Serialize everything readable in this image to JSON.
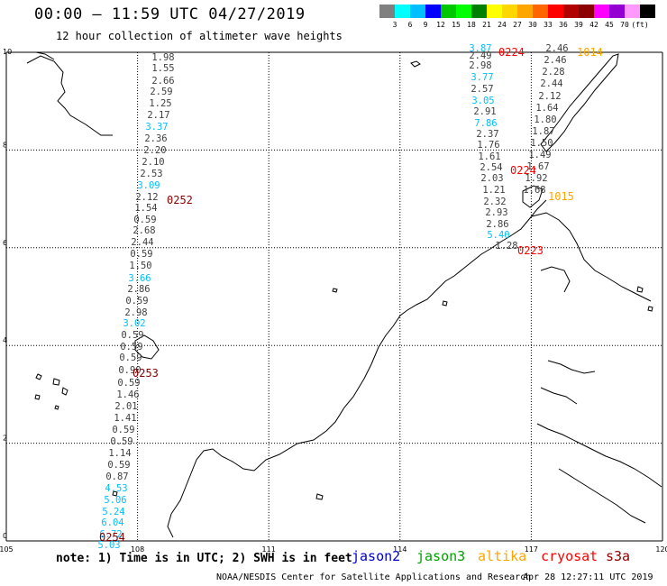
{
  "header": {
    "title": "00:00 – 11:59 UTC 04/27/2019",
    "subtitle": "12 hour collection of altimeter wave heights"
  },
  "color_scale": {
    "colors": [
      "#808080",
      "#00ffff",
      "#00bfff",
      "#0000ff",
      "#00c800",
      "#00ff00",
      "#008000",
      "#ffff00",
      "#ffd700",
      "#ffa500",
      "#ff6600",
      "#ff0000",
      "#b00000",
      "#8b0000",
      "#ff00ff",
      "#9400d3",
      "#ff99ff",
      "#000000"
    ],
    "labels": [
      "3",
      "6",
      "9",
      "12",
      "15",
      "18",
      "21",
      "24",
      "27",
      "30",
      "33",
      "36",
      "39",
      "42",
      "45",
      "70",
      "(ft)"
    ]
  },
  "map": {
    "x_ticks": [
      "105",
      "108",
      "111",
      "114",
      "117",
      "120"
    ],
    "y_ticks": [
      "0",
      "2",
      "4",
      "6",
      "8",
      "10"
    ],
    "lon_range": [
      105,
      120
    ],
    "lat_range": [
      0,
      10
    ]
  },
  "tracks": [
    {
      "name": "track-108",
      "x": [
        181,
        181,
        181,
        179,
        178,
        176,
        174,
        173,
        172,
        170,
        168,
        165,
        163,
        162,
        161,
        160,
        158,
        157,
        156,
        155,
        154,
        152,
        151,
        149,
        147,
        146,
        145,
        144,
        143,
        142,
        140,
        139,
        137,
        135,
        133,
        132,
        130,
        129,
        128,
        126,
        125,
        123,
        121,
        119
      ],
      "y": [
        67,
        79,
        93,
        105,
        118,
        131,
        144,
        157,
        170,
        183,
        196,
        209,
        222,
        234,
        247,
        259,
        272,
        285,
        298,
        312,
        324,
        337,
        350,
        362,
        375,
        388,
        400,
        414,
        428,
        441,
        454,
        467,
        480,
        493,
        506,
        519,
        532,
        545,
        558,
        571,
        583,
        596,
        608,
        620
      ],
      "values": [
        "1.98",
        "1.55",
        "2.66",
        "2.59",
        "1.25",
        "2.17",
        "3.37",
        "2.36",
        "2.20",
        "2.10",
        "2.53",
        "3.09",
        "2.12",
        "1.54",
        "0.59",
        "2.68",
        "2.44",
        "0.59",
        "1.50",
        "3.66",
        "2.86",
        "0.59",
        "2.98",
        "3.02",
        "0.59",
        "0.59",
        "0.59",
        "0.90",
        "0.59",
        "1.46",
        "2.01",
        "1.41",
        "0.59",
        "0.59",
        "1.14",
        "0.59",
        "0.87",
        "4.53",
        "5.06",
        "5.24",
        "6.04",
        "6.72",
        "5.03",
        ""
      ],
      "value_colors": [
        "#404040",
        "#404040",
        "#404040",
        "#404040",
        "#404040",
        "#404040",
        "#00bfff",
        "#404040",
        "#404040",
        "#404040",
        "#404040",
        "#00bfff",
        "#404040",
        "#404040",
        "#404040",
        "#404040",
        "#404040",
        "#404040",
        "#404040",
        "#00bfff",
        "#404040",
        "#404040",
        "#404040",
        "#00bfff",
        "#404040",
        "#404040",
        "#404040",
        "#404040",
        "#404040",
        "#404040",
        "#404040",
        "#404040",
        "#404040",
        "#404040",
        "#404040",
        "#404040",
        "#404040",
        "#00bfff",
        "#00bfff",
        "#00bfff",
        "#00bfff",
        "#00bfff",
        "#00bfff",
        ""
      ]
    },
    {
      "name": "track-116",
      "x": [
        533,
        533,
        533,
        535,
        535,
        536,
        538,
        539,
        541,
        542,
        543,
        545,
        546,
        548,
        549,
        551,
        552,
        553
      ],
      "y": [
        57,
        65,
        76,
        89,
        102,
        115,
        127,
        140,
        152,
        164,
        177,
        189,
        201,
        214,
        227,
        239,
        252,
        264
      ],
      "values": [
        "3.87",
        "2.49",
        "2.98",
        "3.77",
        "2.57",
        "3.05",
        "2.91",
        "7.86",
        "2.37",
        "1.76",
        "1.61",
        "2.54",
        "2.03",
        "1.21",
        "2.32",
        "2.93",
        "2.86",
        "5.40"
      ],
      "value_colors": [
        "#00bfff",
        "#404040",
        "#404040",
        "#00bfff",
        "#404040",
        "#00bfff",
        "#404040",
        "#00bfff",
        "#404040",
        "#404040",
        "#404040",
        "#404040",
        "#404040",
        "#404040",
        "#404040",
        "#404040",
        "#404040",
        "#00bfff"
      ]
    },
    {
      "name": "track-119",
      "x": [
        618,
        616,
        614,
        612,
        610,
        607,
        605,
        603,
        601,
        599,
        597,
        595,
        593,
        591,
        589,
        587,
        585,
        583,
        581,
        579,
        577,
        575,
        573,
        571,
        569,
        567,
        565,
        562
      ],
      "y": [
        57,
        70,
        83,
        96,
        110,
        123,
        136,
        149,
        162,
        175,
        188,
        201,
        214,
        227,
        240,
        253,
        266,
        276,
        280,
        282,
        284,
        286,
        288,
        290,
        292,
        294,
        276,
        276
      ],
      "values": [
        "2.46",
        "2.46",
        "2.28",
        "2.44",
        "2.12",
        "1.64",
        "1.80",
        "1.87",
        "1.50",
        "1.49",
        "1.67",
        "1.92",
        "1.68",
        "",
        "",
        "",
        "",
        "",
        "",
        "",
        "",
        "",
        "",
        "",
        "",
        "",
        "",
        "1.28"
      ],
      "value_colors": [
        "#404040",
        "#404040",
        "#404040",
        "#404040",
        "#404040",
        "#404040",
        "#404040",
        "#404040",
        "#404040",
        "#404040",
        "#404040",
        "#404040",
        "#404040",
        "",
        "",
        "",
        "",
        "",
        "",
        "",
        "",
        "",
        "",
        "",
        "",
        "",
        "",
        "#404040"
      ]
    }
  ],
  "time_labels": [
    {
      "text": "0252",
      "color": "#8b0000"
    },
    {
      "text": "0253",
      "color": "#8b0000"
    },
    {
      "text": "0254",
      "color": "#8b0000"
    },
    {
      "text": "0224",
      "color": "#ff0000"
    },
    {
      "text": "0224",
      "color": "#ff0000"
    },
    {
      "text": "0223",
      "color": "#ff0000"
    },
    {
      "text": "1014",
      "color": "#ffa500"
    },
    {
      "text": "1015",
      "color": "#ffa500"
    }
  ],
  "footer": {
    "note": "note: 1) Time is in UTC; 2) SWH is in feet",
    "satellites": [
      {
        "name": "jason2",
        "color": "#0000cc"
      },
      {
        "name": "jason3",
        "color": "#00a000"
      },
      {
        "name": "altika",
        "color": "#ffa500"
      },
      {
        "name": "cryosat",
        "color": "#ff0000"
      },
      {
        "name": "s3a",
        "color": "#8b0000"
      }
    ],
    "credit": "NOAA/NESDIS Center for Satellite Applications and Research",
    "timestamp": "Apr 28 12:27:11 UTC 2019"
  }
}
